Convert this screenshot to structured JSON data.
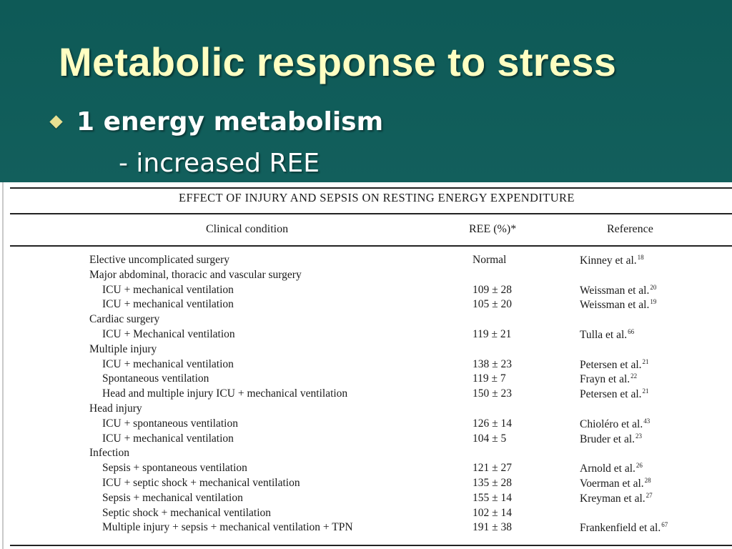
{
  "slide": {
    "title": "Metabolic response to stress",
    "bullet": "1 energy metabolism",
    "sub_bullet": "- increased REE"
  },
  "table": {
    "title": "Effect of injury and sepsis on resting energy expenditure",
    "headers": {
      "condition": "Clinical condition",
      "ree": "REE (%)*",
      "reference": "Reference"
    },
    "rows": [
      {
        "condition": "Elective uncomplicated surgery",
        "ree": "Normal",
        "ref": "Kinney et al.",
        "refnum": "18",
        "indent": false
      },
      {
        "condition": "Major abdominal, thoracic and vascular surgery",
        "ree": "",
        "ref": "",
        "refnum": "",
        "indent": false
      },
      {
        "condition": "ICU + mechanical ventilation",
        "ree": "109 ± 28",
        "ref": "Weissman et al.",
        "refnum": "20",
        "indent": true
      },
      {
        "condition": "ICU + mechanical ventilation",
        "ree": "105 ± 20",
        "ref": "Weissman et al.",
        "refnum": "19",
        "indent": true
      },
      {
        "condition": "Cardiac surgery",
        "ree": "",
        "ref": "",
        "refnum": "",
        "indent": false
      },
      {
        "condition": "ICU + Mechanical ventilation",
        "ree": "119 ± 21",
        "ref": "Tulla et al.",
        "refnum": "66",
        "indent": true
      },
      {
        "condition": "Multiple injury",
        "ree": "",
        "ref": "",
        "refnum": "",
        "indent": false
      },
      {
        "condition": "ICU + mechanical ventilation",
        "ree": "138 ± 23",
        "ref": "Petersen et al.",
        "refnum": "21",
        "indent": true
      },
      {
        "condition": "Spontaneous ventilation",
        "ree": "119 ± 7",
        "ref": "Frayn et al.",
        "refnum": "22",
        "indent": true
      },
      {
        "condition": "Head and multiple injury ICU + mechanical ventilation",
        "ree": "150 ± 23",
        "ref": "Petersen et al.",
        "refnum": "21",
        "indent": true
      },
      {
        "condition": "Head injury",
        "ree": "",
        "ref": "",
        "refnum": "",
        "indent": false
      },
      {
        "condition": "ICU + spontaneous ventilation",
        "ree": "126 ± 14",
        "ref": "Chioléro et al.",
        "refnum": "43",
        "indent": true
      },
      {
        "condition": "ICU + mechanical ventilation",
        "ree": "104 ± 5",
        "ref": "Bruder et al.",
        "refnum": "23",
        "indent": true
      },
      {
        "condition": "Infection",
        "ree": "",
        "ref": "",
        "refnum": "",
        "indent": false
      },
      {
        "condition": "Sepsis + spontaneous ventilation",
        "ree": "121 ± 27",
        "ref": "Arnold et al.",
        "refnum": "26",
        "indent": true
      },
      {
        "condition": "ICU + septic shock + mechanical ventilation",
        "ree": "135 ± 28",
        "ref": "Voerman et al.",
        "refnum": "28",
        "indent": true
      },
      {
        "condition": "Sepsis + mechanical ventilation",
        "ree": "155 ± 14",
        "ref": "Kreyman et al.",
        "refnum": "27",
        "indent": true
      },
      {
        "condition": "Septic shock + mechanical ventilation",
        "ree": "102 ± 14",
        "ref": "",
        "refnum": "",
        "indent": true
      },
      {
        "condition": "Multiple injury + sepsis + mechanical ventilation + TPN",
        "ree": "191 ± 38",
        "ref": "Frankenfield et al.",
        "refnum": "67",
        "indent": true
      }
    ]
  },
  "colors": {
    "background": "#13605d",
    "title": "#ffffc2",
    "bullet_marker": "#e8e092",
    "text": "#ffffff"
  }
}
